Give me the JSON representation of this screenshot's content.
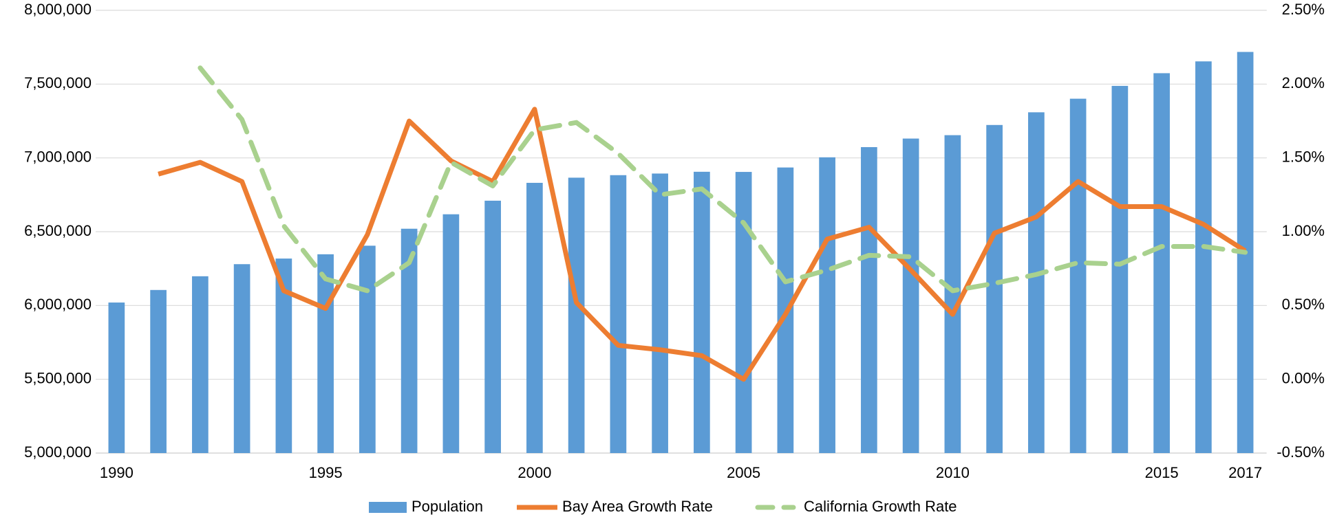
{
  "chart_data": {
    "type": "combo",
    "categories": [
      "1990",
      null,
      null,
      null,
      null,
      "1995",
      null,
      null,
      null,
      null,
      "2000",
      null,
      null,
      null,
      null,
      "2005",
      null,
      null,
      null,
      null,
      "2010",
      null,
      null,
      null,
      null,
      "2015",
      null,
      "2017"
    ],
    "series": [
      {
        "name": "Population",
        "type": "bar",
        "axis": "y",
        "color": "#5b9bd5",
        "values": [
          6020000,
          6105000,
          6198000,
          6280000,
          6318000,
          6347000,
          6405000,
          6520000,
          6618000,
          6710000,
          6831000,
          6866000,
          6883000,
          6894000,
          6906000,
          6905000,
          6935000,
          7004000,
          7073000,
          7131000,
          7154000,
          7223000,
          7309000,
          7401000,
          7488000,
          7574000,
          7654000,
          7718000
        ]
      },
      {
        "name": "Bay Area Growth Rate",
        "type": "line",
        "axis": "y2",
        "color": "#ed7d31",
        "line_style": "solid",
        "values": [
          null,
          1.39,
          1.47,
          1.34,
          0.6,
          0.48,
          0.98,
          1.75,
          1.48,
          1.34,
          1.83,
          0.52,
          0.23,
          0.2,
          0.16,
          0.0,
          0.44,
          0.95,
          1.03,
          0.74,
          0.44,
          0.99,
          1.1,
          1.34,
          1.17,
          1.17,
          1.05,
          0.87
        ]
      },
      {
        "name": "California Growth Rate",
        "type": "line",
        "axis": "y2",
        "color": "#a9d18e",
        "line_style": "dashed",
        "values": [
          null,
          null,
          2.11,
          1.76,
          1.04,
          0.68,
          0.6,
          0.79,
          1.47,
          1.31,
          1.69,
          1.74,
          1.53,
          1.25,
          1.29,
          1.06,
          0.66,
          0.74,
          0.84,
          0.83,
          0.6,
          0.65,
          0.71,
          0.79,
          0.78,
          0.9,
          0.9,
          0.86
        ]
      }
    ],
    "ylim": [
      5000000,
      8000000
    ],
    "yticks": [
      {
        "value": 5000000,
        "label": "5,000,000"
      },
      {
        "value": 5500000,
        "label": "5,500,000"
      },
      {
        "value": 6000000,
        "label": "6,000,000"
      },
      {
        "value": 6500000,
        "label": "6,500,000"
      },
      {
        "value": 7000000,
        "label": "7,000,000"
      },
      {
        "value": 7500000,
        "label": "7,500,000"
      },
      {
        "value": 8000000,
        "label": "8,000,000"
      }
    ],
    "y2lim": [
      -0.5,
      2.5
    ],
    "y2ticks": [
      {
        "value": -0.5,
        "label": "-0.50%"
      },
      {
        "value": 0,
        "label": "0.00%"
      },
      {
        "value": 0.5,
        "label": "0.50%"
      },
      {
        "value": 1,
        "label": "1.00%"
      },
      {
        "value": 1.5,
        "label": "1.50%"
      },
      {
        "value": 2,
        "label": "2.00%"
      },
      {
        "value": 2.5,
        "label": "2.50%"
      }
    ],
    "grid": true,
    "legend": "bottom"
  }
}
